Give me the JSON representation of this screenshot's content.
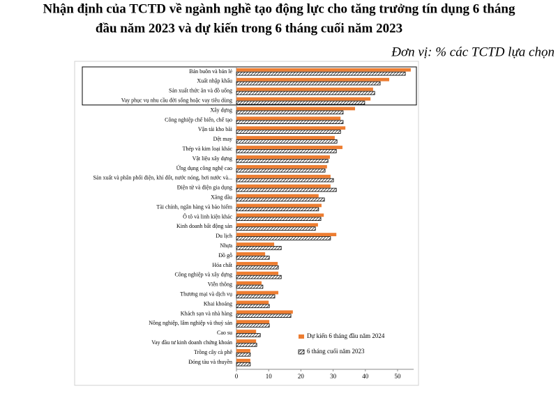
{
  "chart_data": {
    "type": "bar",
    "orientation": "horizontal",
    "title": [
      "Nhận định của TCTD về ngành nghề tạo động lực cho tăng trưởng tín dụng 6 tháng",
      "đầu năm 2023 và dự kiến trong 6 tháng cuối năm 2023"
    ],
    "subtitle": "Đơn vị: % các TCTD lựa chọn",
    "categories": [
      "Bán buôn và bán lẻ",
      "Xuất nhập khẩu",
      "Sản xuất thức ăn và đồ uống",
      "Vay phục vụ nhu cầu đời sống hoặc vay tiêu dùng",
      "Xây dựng",
      "Công nghiệp chế biến, chế tạo",
      "Vận tải kho bãi",
      "Dệt may",
      "Thép và kim loại khác",
      "Vật liệu xây dựng",
      "Ứng dụng công nghệ cao",
      "Sản xuất và phân phối điện, khí đốt, nước nóng, hơi nước và...",
      "Điện tử và điện gia dụng",
      "Xăng dầu",
      "Tài chính, ngân hàng và bảo hiểm",
      "Ô tô và linh kiện khác",
      "Kinh doanh bất động sản",
      "Du lịch",
      "Nhựa",
      "Đồ gỗ",
      "Hóa chất",
      "Công nghiệp và xây dựng",
      "Viễn thông",
      "Thương mại và dịch vụ",
      "Khai khoáng",
      "Khách sạn và nhà hàng",
      "Nông nghiệp, lâm nghiệp và thuỷ sản",
      "Cao su",
      "Vay đầu tư kinh doanh chứng khoán",
      "Trồng cây cà phê",
      "Đóng tàu và thuyền"
    ],
    "series": [
      {
        "name": "Dự kiến 6 tháng đầu năm 2024",
        "color": "#ed7d31",
        "pattern": "solid",
        "values": [
          54.1,
          47.4,
          42.4,
          41.6,
          36.8,
          32.3,
          33.8,
          30.5,
          32.9,
          29,
          28.1,
          29.2,
          29.2,
          25.5,
          26.4,
          27.1,
          25.3,
          31,
          11.7,
          8.9,
          12.8,
          13,
          7.8,
          13,
          10,
          17.5,
          10.2,
          6.1,
          6.1,
          4.3,
          4.3
        ]
      },
      {
        "name": "6 tháng cuối năm 2023",
        "color": "#000000",
        "pattern": "hatch",
        "values": [
          52.4,
          44.6,
          42.9,
          39.8,
          33.1,
          33.1,
          32.3,
          31.2,
          31,
          28.4,
          27.5,
          30.1,
          31,
          27.3,
          25.5,
          26.2,
          24.5,
          29.2,
          13.9,
          10.2,
          13,
          13.9,
          8.2,
          11.9,
          10.2,
          16.9,
          10.2,
          7.4,
          6.3,
          4.3,
          4.3
        ]
      }
    ],
    "xlim": [
      0,
      55
    ],
    "xticks": [
      0,
      10,
      20,
      30,
      40,
      50
    ],
    "grid": false,
    "legend": "lower right"
  }
}
